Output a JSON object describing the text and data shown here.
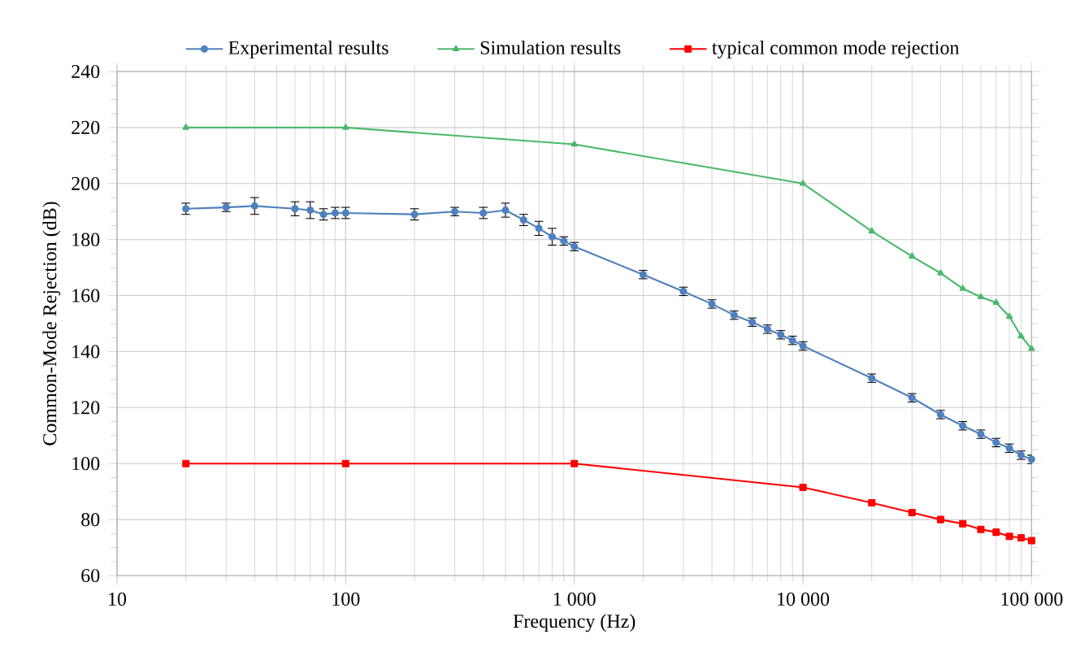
{
  "chart_data": {
    "type": "line",
    "xlabel": "Frequency (Hz)",
    "ylabel": "Common-Mode Rejection (dB)",
    "log": "x",
    "grid": true,
    "legend": "top",
    "line_style": "solid",
    "xlim": [
      10,
      100000
    ],
    "xticks": [
      10,
      100,
      {
        "value": 1000,
        "label": "1 000"
      },
      {
        "value": 10000,
        "label": "10 000"
      },
      {
        "value": 100000,
        "label": "100 000"
      }
    ],
    "ylim": [
      60,
      240
    ],
    "yticks": [
      60,
      80,
      100,
      120,
      140,
      160,
      180,
      200,
      220,
      240
    ],
    "series": [
      {
        "name": "Experimental results",
        "color": "#4f81bd",
        "marker": "circle",
        "x": [
          20,
          30,
          40,
          60,
          70,
          80,
          90,
          100,
          200,
          300,
          400,
          500,
          600,
          700,
          800,
          900,
          1000,
          2000,
          3000,
          4000,
          5000,
          6000,
          7000,
          8000,
          9000,
          10000,
          20000,
          30000,
          40000,
          50000,
          60000,
          70000,
          80000,
          90000,
          100000
        ],
        "values": [
          191,
          191.5,
          192,
          191,
          190.5,
          189,
          189.5,
          189.5,
          189,
          190,
          189.5,
          190.5,
          187,
          184,
          181,
          179.5,
          177.5,
          167.5,
          161.5,
          157,
          153,
          150.5,
          148,
          146,
          144,
          142,
          130.5,
          123.5,
          117.5,
          113.5,
          110.5,
          107.5,
          105.5,
          103,
          101.5
        ],
        "errors": [
          2,
          1.5,
          3,
          2.5,
          3,
          2,
          2,
          2,
          2,
          1.5,
          2,
          2.5,
          2,
          2.5,
          3,
          1.5,
          1.5,
          1.5,
          1.5,
          1.5,
          1.5,
          1.5,
          1.5,
          1.5,
          1.5,
          1.5,
          1.5,
          1.5,
          1.5,
          1.5,
          1.5,
          1.5,
          1.5,
          1.5,
          1.5
        ]
      },
      {
        "name": "Simulation results",
        "color": "#4cb86a",
        "marker": "triangle",
        "x": [
          20,
          100,
          1000,
          10000,
          20000,
          30000,
          40000,
          50000,
          60000,
          70000,
          80000,
          90000,
          100000
        ],
        "values": [
          220,
          220,
          214,
          200,
          183,
          174,
          168,
          162.5,
          159.5,
          157.5,
          152.5,
          145.5,
          141
        ]
      },
      {
        "name": "typical common mode rejection",
        "color": "#ff0000",
        "marker": "square",
        "x": [
          20,
          100,
          1000,
          10000,
          20000,
          30000,
          40000,
          50000,
          60000,
          70000,
          80000,
          90000,
          100000
        ],
        "values": [
          100,
          100,
          100,
          91.5,
          86,
          82.5,
          80,
          78.5,
          76.5,
          75.5,
          74,
          73.5,
          72.5
        ]
      }
    ]
  }
}
